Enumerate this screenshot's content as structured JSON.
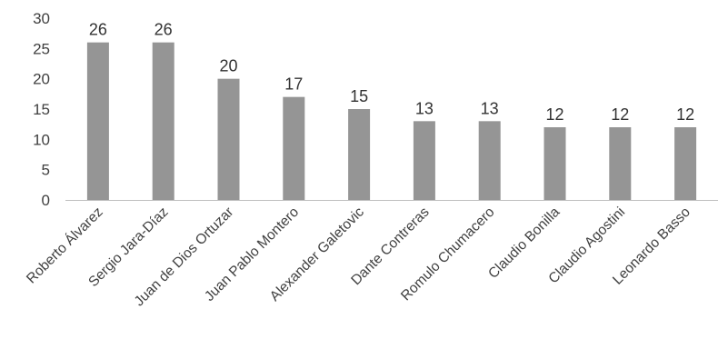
{
  "chart_data": {
    "type": "bar",
    "categories": [
      "Roberto Álvarez",
      "Sergio Jara-Díaz",
      "Juan de Dios Ortuzar",
      "Juan Pablo Montero",
      "Alexander Galetovic",
      "Dante Contreras",
      "Romulo Chumacero",
      "Claudio Bonilla",
      "Claudio Agostini",
      "Leonardo Basso"
    ],
    "values": [
      26,
      26,
      20,
      17,
      15,
      13,
      13,
      12,
      12,
      12
    ],
    "yticks": [
      0,
      5,
      10,
      15,
      20,
      25,
      30
    ],
    "ylim": [
      0,
      30
    ],
    "title": "",
    "xlabel": "",
    "ylabel": "",
    "grid": false,
    "legend": "none",
    "bar_color": "#959595",
    "axis_color": "#bfbfbf",
    "text_color": "#404040"
  }
}
